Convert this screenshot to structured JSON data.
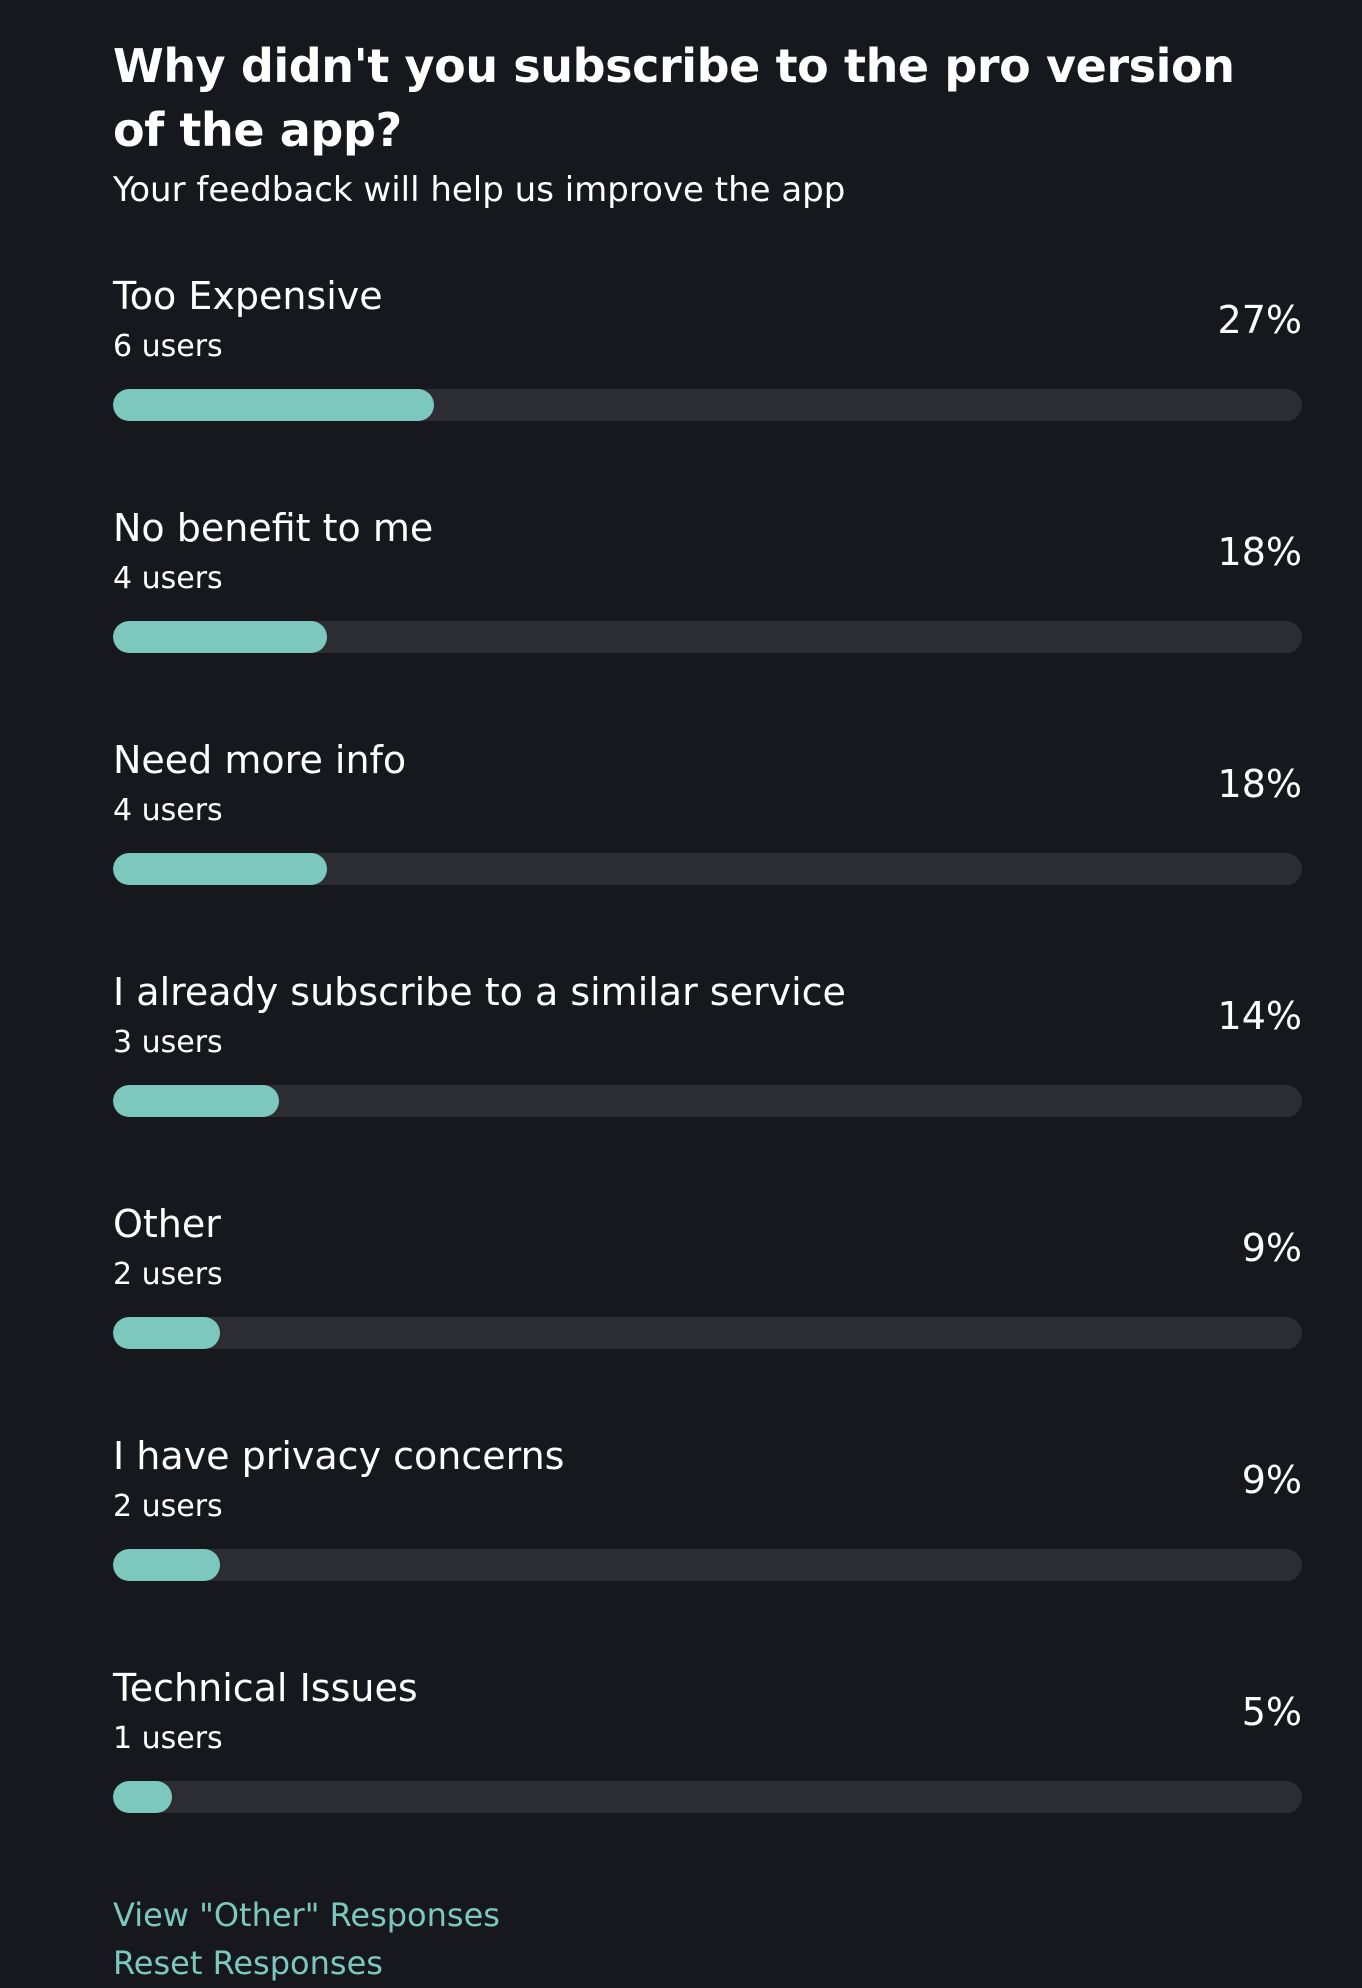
{
  "survey": {
    "title": "Why didn't you subscribe to the pro version of the app?",
    "subtitle": "Your feedback will help us improve the app",
    "accent_color": "#7cc8be",
    "track_color": "#2c2d32",
    "background_color": "#17181d",
    "options": [
      {
        "label": "Too Expensive",
        "count": "6 users",
        "percent": "27%",
        "fill": 0.27
      },
      {
        "label": "No benefit to me",
        "count": "4 users",
        "percent": "18%",
        "fill": 0.18
      },
      {
        "label": "Need more info",
        "count": "4 users",
        "percent": "18%",
        "fill": 0.18
      },
      {
        "label": "I already subscribe to a similar service",
        "count": "3 users",
        "percent": "14%",
        "fill": 0.14
      },
      {
        "label": "Other",
        "count": "2 users",
        "percent": "9%",
        "fill": 0.09
      },
      {
        "label": "I have privacy concerns",
        "count": "2 users",
        "percent": "9%",
        "fill": 0.09
      },
      {
        "label": "Technical Issues",
        "count": "1 users",
        "percent": "5%",
        "fill": 0.05
      }
    ],
    "links": {
      "view_other": "View \"Other\" Responses",
      "reset": "Reset Responses"
    }
  }
}
